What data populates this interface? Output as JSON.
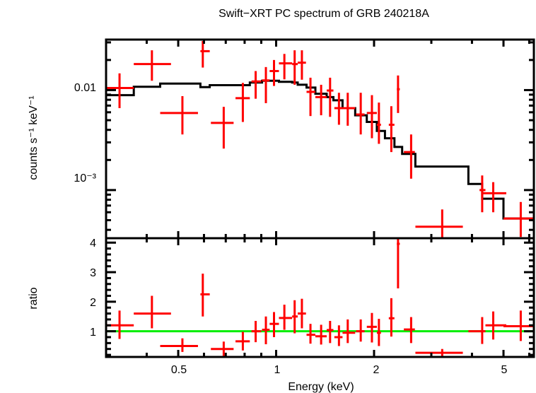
{
  "chart_data": [
    {
      "type": "scatter",
      "panel": "upper",
      "title": "Swift−XRT PC spectrum of GRB 240218A",
      "xlabel": "Energy (keV)",
      "ylabel": "counts s⁻¹ keV⁻¹",
      "xscale": "log",
      "yscale": "log",
      "xlim": [
        0.3,
        6.2
      ],
      "ylim": [
        0.00033,
        0.032
      ],
      "y_tick_labels": [
        {
          "value": 0.01,
          "label": "0.01"
        },
        {
          "value": 0.001,
          "label": "10⁻³"
        }
      ],
      "series": [
        {
          "name": "data",
          "color": "#ff0000",
          "style": "crosses",
          "points": [
            {
              "x": 0.33,
              "xlo": 0.3,
              "xhi": 0.365,
              "y": 0.0105,
              "ylo": 0.0066,
              "yhi": 0.0147
            },
            {
              "x": 0.415,
              "xlo": 0.365,
              "xhi": 0.475,
              "y": 0.0182,
              "ylo": 0.0124,
              "yhi": 0.025
            },
            {
              "x": 0.515,
              "xlo": 0.44,
              "xhi": 0.575,
              "y": 0.0059,
              "ylo": 0.0036,
              "yhi": 0.0087
            },
            {
              "x": 0.595,
              "xlo": 0.585,
              "xhi": 0.625,
              "y": 0.0245,
              "ylo": 0.0168,
              "yhi": 0.031
            },
            {
              "x": 0.69,
              "xlo": 0.63,
              "xhi": 0.74,
              "y": 0.0047,
              "ylo": 0.0026,
              "yhi": 0.0068
            },
            {
              "x": 0.79,
              "xlo": 0.75,
              "xhi": 0.83,
              "y": 0.0083,
              "ylo": 0.0048,
              "yhi": 0.0118
            },
            {
              "x": 0.865,
              "xlo": 0.84,
              "xhi": 0.9,
              "y": 0.0122,
              "ylo": 0.0082,
              "yhi": 0.0155
            },
            {
              "x": 0.93,
              "xlo": 0.905,
              "xhi": 0.955,
              "y": 0.0125,
              "ylo": 0.0074,
              "yhi": 0.017
            },
            {
              "x": 0.985,
              "xlo": 0.955,
              "xhi": 1.02,
              "y": 0.0155,
              "ylo": 0.011,
              "yhi": 0.02
            },
            {
              "x": 1.06,
              "xlo": 1.02,
              "xhi": 1.12,
              "y": 0.0185,
              "ylo": 0.0128,
              "yhi": 0.023
            },
            {
              "x": 1.14,
              "xlo": 1.12,
              "xhi": 1.165,
              "y": 0.0182,
              "ylo": 0.0113,
              "yhi": 0.025
            },
            {
              "x": 1.2,
              "xlo": 1.165,
              "xhi": 1.235,
              "y": 0.0188,
              "ylo": 0.0127,
              "yhi": 0.025
            },
            {
              "x": 1.275,
              "xlo": 1.24,
              "xhi": 1.32,
              "y": 0.0096,
              "ylo": 0.0055,
              "yhi": 0.0133
            },
            {
              "x": 1.375,
              "xlo": 1.32,
              "xhi": 1.43,
              "y": 0.0085,
              "ylo": 0.0056,
              "yhi": 0.0113
            },
            {
              "x": 1.465,
              "xlo": 1.43,
              "xhi": 1.5,
              "y": 0.0099,
              "ylo": 0.0054,
              "yhi": 0.0133
            },
            {
              "x": 1.56,
              "xlo": 1.51,
              "xhi": 1.6,
              "y": 0.0066,
              "ylo": 0.0045,
              "yhi": 0.0094
            },
            {
              "x": 1.66,
              "xlo": 1.6,
              "xhi": 1.75,
              "y": 0.0066,
              "ylo": 0.0044,
              "yhi": 0.0094
            },
            {
              "x": 1.82,
              "xlo": 1.76,
              "xhi": 1.87,
              "y": 0.0057,
              "ylo": 0.0036,
              "yhi": 0.0094
            },
            {
              "x": 1.97,
              "xlo": 1.9,
              "xhi": 2.04,
              "y": 0.0059,
              "ylo": 0.0033,
              "yhi": 0.0089
            },
            {
              "x": 2.07,
              "xlo": 2.04,
              "xhi": 2.1,
              "y": 0.0045,
              "ylo": 0.0029,
              "yhi": 0.0075
            },
            {
              "x": 2.26,
              "xlo": 2.22,
              "xhi": 2.31,
              "y": 0.0045,
              "ylo": 0.0024,
              "yhi": 0.0069
            },
            {
              "x": 2.37,
              "xlo": 2.35,
              "xhi": 2.4,
              "y": 0.0102,
              "ylo": 0.0059,
              "yhi": 0.014
            },
            {
              "x": 2.6,
              "xlo": 2.47,
              "xhi": 2.67,
              "y": 0.0024,
              "ylo": 0.0013,
              "yhi": 0.0036
            },
            {
              "x": 3.24,
              "xlo": 2.68,
              "xhi": 3.75,
              "y": 0.00043,
              "ylo": 0.00033,
              "yhi": 0.00064
            },
            {
              "x": 4.3,
              "xlo": 4.22,
              "xhi": 4.4,
              "y": 0.001,
              "ylo": 0.0006,
              "yhi": 0.0014
            },
            {
              "x": 4.65,
              "xlo": 4.3,
              "xhi": 5.1,
              "y": 0.00093,
              "ylo": 0.0006,
              "yhi": 0.0012
            },
            {
              "x": 5.65,
              "xlo": 5.0,
              "xhi": 6.2,
              "y": 0.00052,
              "ylo": 0.00034,
              "yhi": 0.00076
            }
          ]
        },
        {
          "name": "model",
          "color": "#000000",
          "style": "step",
          "steps": [
            {
              "x0": 0.3,
              "x1": 0.365,
              "y": 0.0089
            },
            {
              "x0": 0.365,
              "x1": 0.44,
              "y": 0.0108
            },
            {
              "x0": 0.44,
              "x1": 0.585,
              "y": 0.0116
            },
            {
              "x0": 0.585,
              "x1": 0.625,
              "y": 0.0107
            },
            {
              "x0": 0.625,
              "x1": 0.83,
              "y": 0.0112
            },
            {
              "x0": 0.83,
              "x1": 0.905,
              "y": 0.0119
            },
            {
              "x0": 0.905,
              "x1": 1.02,
              "y": 0.0124
            },
            {
              "x0": 1.02,
              "x1": 1.12,
              "y": 0.0121
            },
            {
              "x0": 1.12,
              "x1": 1.165,
              "y": 0.0119
            },
            {
              "x0": 1.165,
              "x1": 1.24,
              "y": 0.0113
            },
            {
              "x0": 1.24,
              "x1": 1.32,
              "y": 0.0106
            },
            {
              "x0": 1.32,
              "x1": 1.43,
              "y": 0.0092
            },
            {
              "x0": 1.43,
              "x1": 1.5,
              "y": 0.0085
            },
            {
              "x0": 1.5,
              "x1": 1.6,
              "y": 0.0079
            },
            {
              "x0": 1.6,
              "x1": 1.75,
              "y": 0.0066
            },
            {
              "x0": 1.75,
              "x1": 1.9,
              "y": 0.0056
            },
            {
              "x0": 1.9,
              "x1": 2.04,
              "y": 0.0048
            },
            {
              "x0": 2.04,
              "x1": 2.16,
              "y": 0.0039
            },
            {
              "x0": 2.16,
              "x1": 2.31,
              "y": 0.0033
            },
            {
              "x0": 2.31,
              "x1": 2.44,
              "y": 0.0027
            },
            {
              "x0": 2.44,
              "x1": 2.68,
              "y": 0.0023
            },
            {
              "x0": 2.68,
              "x1": 3.9,
              "y": 0.00172
            },
            {
              "x0": 3.9,
              "x1": 4.3,
              "y": 0.00115
            },
            {
              "x0": 4.3,
              "x1": 5.0,
              "y": 0.00082
            },
            {
              "x0": 5.0,
              "x1": 6.2,
              "y": 0.00052
            }
          ]
        }
      ]
    },
    {
      "type": "scatter",
      "panel": "lower",
      "xlabel": "Energy (keV)",
      "ylabel": "ratio",
      "xscale": "log",
      "yscale": "linear",
      "xlim": [
        0.3,
        6.2
      ],
      "ylim": [
        0.13,
        4.15
      ],
      "x_tick_labels": [
        {
          "value": 0.5,
          "label": "0.5"
        },
        {
          "value": 1,
          "label": "1"
        },
        {
          "value": 2,
          "label": "2"
        },
        {
          "value": 5,
          "label": "5"
        }
      ],
      "y_tick_labels": [
        {
          "value": 1,
          "label": "1"
        },
        {
          "value": 2,
          "label": "2"
        },
        {
          "value": 3,
          "label": "3"
        },
        {
          "value": 4,
          "label": "4"
        }
      ],
      "reference_line": {
        "y": 1,
        "color": "#00ee00"
      },
      "series": [
        {
          "name": "ratio",
          "color": "#ff0000",
          "style": "crosses",
          "points": [
            {
              "x": 0.33,
              "xlo": 0.3,
              "xhi": 0.365,
              "y": 1.2,
              "ylo": 0.74,
              "yhi": 1.7
            },
            {
              "x": 0.415,
              "xlo": 0.365,
              "xhi": 0.475,
              "y": 1.6,
              "ylo": 1.1,
              "yhi": 2.2
            },
            {
              "x": 0.515,
              "xlo": 0.44,
              "xhi": 0.575,
              "y": 0.5,
              "ylo": 0.3,
              "yhi": 0.76
            },
            {
              "x": 0.595,
              "xlo": 0.585,
              "xhi": 0.625,
              "y": 2.25,
              "ylo": 1.5,
              "yhi": 2.95
            },
            {
              "x": 0.69,
              "xlo": 0.63,
              "xhi": 0.74,
              "y": 0.4,
              "ylo": 0.16,
              "yhi": 0.65
            },
            {
              "x": 0.79,
              "xlo": 0.75,
              "xhi": 0.83,
              "y": 0.66,
              "ylo": 0.35,
              "yhi": 0.98
            },
            {
              "x": 0.865,
              "xlo": 0.84,
              "xhi": 0.9,
              "y": 1.0,
              "ylo": 0.63,
              "yhi": 1.35
            },
            {
              "x": 0.93,
              "xlo": 0.905,
              "xhi": 0.955,
              "y": 1.05,
              "ylo": 0.56,
              "yhi": 1.5
            },
            {
              "x": 0.985,
              "xlo": 0.955,
              "xhi": 1.02,
              "y": 1.25,
              "ylo": 0.8,
              "yhi": 1.65
            },
            {
              "x": 1.06,
              "xlo": 1.02,
              "xhi": 1.12,
              "y": 1.45,
              "ylo": 1.05,
              "yhi": 1.9
            },
            {
              "x": 1.14,
              "xlo": 1.12,
              "xhi": 1.165,
              "y": 1.5,
              "ylo": 0.93,
              "yhi": 2.05
            },
            {
              "x": 1.2,
              "xlo": 1.165,
              "xhi": 1.235,
              "y": 1.6,
              "ylo": 1.1,
              "yhi": 2.1
            },
            {
              "x": 1.275,
              "xlo": 1.24,
              "xhi": 1.32,
              "y": 0.88,
              "ylo": 0.58,
              "yhi": 1.25
            },
            {
              "x": 1.375,
              "xlo": 1.32,
              "xhi": 1.43,
              "y": 0.83,
              "ylo": 0.55,
              "yhi": 1.22
            },
            {
              "x": 1.465,
              "xlo": 1.43,
              "xhi": 1.5,
              "y": 1.04,
              "ylo": 0.6,
              "yhi": 1.35
            },
            {
              "x": 1.56,
              "xlo": 1.51,
              "xhi": 1.6,
              "y": 0.8,
              "ylo": 0.5,
              "yhi": 1.2
            },
            {
              "x": 1.66,
              "xlo": 1.6,
              "xhi": 1.75,
              "y": 0.95,
              "ylo": 0.6,
              "yhi": 1.4
            },
            {
              "x": 1.82,
              "xlo": 1.76,
              "xhi": 1.87,
              "y": 1.0,
              "ylo": 0.65,
              "yhi": 1.4
            },
            {
              "x": 1.97,
              "xlo": 1.9,
              "xhi": 2.04,
              "y": 1.15,
              "ylo": 0.62,
              "yhi": 1.62
            },
            {
              "x": 2.07,
              "xlo": 2.04,
              "xhi": 2.1,
              "y": 0.95,
              "ylo": 0.5,
              "yhi": 1.42
            },
            {
              "x": 2.26,
              "xlo": 2.22,
              "xhi": 2.31,
              "y": 1.44,
              "ylo": 0.82,
              "yhi": 2.12
            },
            {
              "x": 2.37,
              "xlo": 2.35,
              "xhi": 2.4,
              "y": 3.96,
              "ylo": 2.45,
              "yhi": 4.15
            },
            {
              "x": 2.6,
              "xlo": 2.47,
              "xhi": 2.67,
              "y": 1.06,
              "ylo": 0.6,
              "yhi": 1.48
            },
            {
              "x": 3.24,
              "xlo": 2.68,
              "xhi": 3.75,
              "y": 0.27,
              "ylo": 0.13,
              "yhi": 0.4
            },
            {
              "x": 4.3,
              "xlo": 3.9,
              "xhi": 4.4,
              "y": 1.0,
              "ylo": 0.57,
              "yhi": 1.48
            },
            {
              "x": 4.65,
              "xlo": 4.4,
              "xhi": 5.1,
              "y": 1.2,
              "ylo": 0.72,
              "yhi": 1.67
            },
            {
              "x": 5.65,
              "xlo": 5.0,
              "xhi": 6.2,
              "y": 1.17,
              "ylo": 0.67,
              "yhi": 1.7
            }
          ]
        }
      ]
    }
  ]
}
